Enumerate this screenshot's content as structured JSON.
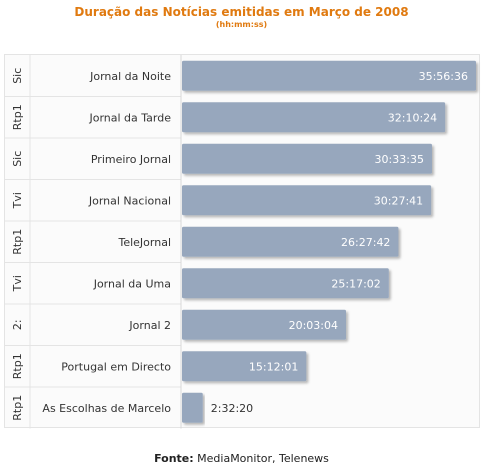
{
  "header": {
    "title": "Duração das Notícias emitidas em Março de 2008",
    "subtitle": "(hh:mm:ss)"
  },
  "footer": {
    "source_label": "Fonte:",
    "source_text": "MediaMonitor, Telenews"
  },
  "colors": {
    "title": "#e07a10",
    "bar": "#97a7bd",
    "bar_label_inside": "#ffffff",
    "bar_label_outside": "#333333",
    "text": "#333333",
    "grid": "#e4e4e4"
  },
  "chart_data": {
    "type": "bar",
    "orientation": "horizontal",
    "title": "Duração das Notícias emitidas em Março de 2008",
    "subtitle": "(hh:mm:ss)",
    "unit": "hh:mm:ss",
    "categories": [
      "Jornal da Noite",
      "Jornal da Tarde",
      "Primeiro Jornal",
      "Jornal Nacional",
      "TeleJornal",
      "Jornal da Uma",
      "Jornal 2",
      "Portugal em Directo",
      "As Escolhas de Marcelo"
    ],
    "groups": [
      "Sic",
      "Rtp1",
      "Sic",
      "Tvi",
      "Rtp1",
      "Tvi",
      "2:",
      "Rtp1",
      "Rtp1"
    ],
    "labels": [
      "35:56:36",
      "32:10:24",
      "30:33:35",
      "30:27:41",
      "26:27:42",
      "25:17:02",
      "20:03:04",
      "15:12:01",
      "2:32:20"
    ],
    "values": [
      129396,
      115824,
      110015,
      109661,
      95262,
      91022,
      72184,
      54721,
      9140
    ],
    "value_unit": "seconds",
    "xlim": [
      0,
      129396
    ],
    "grid": false,
    "legend": "none"
  }
}
